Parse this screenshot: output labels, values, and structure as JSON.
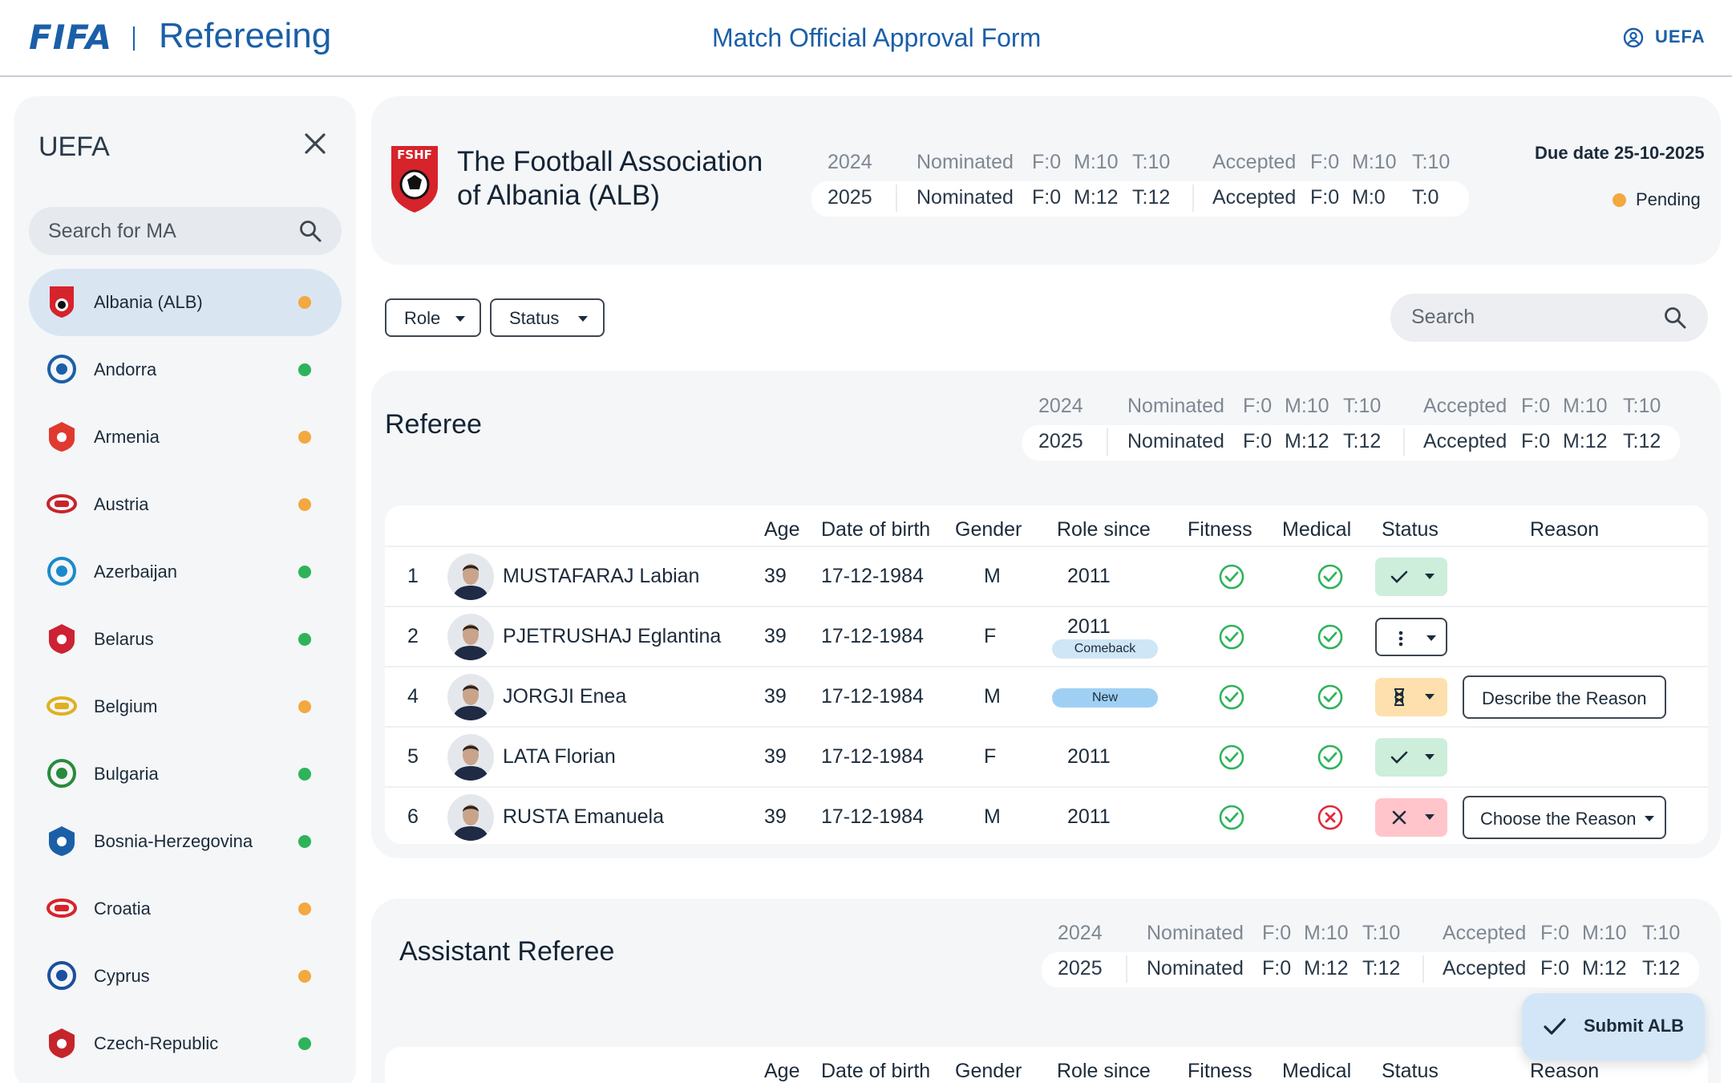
{
  "header": {
    "brand": "FIFA",
    "app_title": "Refereeing",
    "form_title": "Match Official Approval Form",
    "user_org": "UEFA"
  },
  "sidebar": {
    "title": "UEFA",
    "search_placeholder": "Search for MA",
    "items": [
      {
        "label": "Albania (ALB)",
        "status": "pending",
        "color": "#f3a840",
        "selected": true
      },
      {
        "label": "Andorra",
        "status": "done",
        "color": "#2fb35a"
      },
      {
        "label": "Armenia",
        "status": "pending",
        "color": "#f3a840"
      },
      {
        "label": "Austria",
        "status": "pending",
        "color": "#f3a840"
      },
      {
        "label": "Azerbaijan",
        "status": "done",
        "color": "#2fb35a"
      },
      {
        "label": "Belarus",
        "status": "done",
        "color": "#2fb35a"
      },
      {
        "label": "Belgium",
        "status": "pending",
        "color": "#f3a840"
      },
      {
        "label": "Bulgaria",
        "status": "done",
        "color": "#2fb35a"
      },
      {
        "label": "Bosnia-Herzegovina",
        "status": "done",
        "color": "#2fb35a"
      },
      {
        "label": "Croatia",
        "status": "pending",
        "color": "#f3a840"
      },
      {
        "label": "Cyprus",
        "status": "pending",
        "color": "#f3a840"
      },
      {
        "label": "Czech-Republic",
        "status": "done",
        "color": "#2fb35a"
      }
    ]
  },
  "association": {
    "logo_text": "FSHF",
    "name_line1": "The Football Association",
    "name_line2": "of Albania (ALB)",
    "due_date": "Due date 25-10-2025",
    "status": "Pending",
    "prev": {
      "year": "2024",
      "nominated": "Nominated",
      "nf": "F:0",
      "nm": "M:10",
      "nt": "T:10",
      "accepted": "Accepted",
      "af": "F:0",
      "am": "M:10",
      "at": "T:10"
    },
    "curr": {
      "year": "2025",
      "nominated": "Nominated",
      "nf": "F:0",
      "nm": "M:12",
      "nt": "T:12",
      "accepted": "Accepted",
      "af": "F:0",
      "am": "M:0",
      "at": "T:0"
    }
  },
  "filters": {
    "role": "Role",
    "status": "Status",
    "search_placeholder": "Search"
  },
  "referee": {
    "title": "Referee",
    "prev": {
      "year": "2024",
      "nominated": "Nominated",
      "nf": "F:0",
      "nm": "M:10",
      "nt": "T:10",
      "accepted": "Accepted",
      "af": "F:0",
      "am": "M:10",
      "at": "T:10"
    },
    "curr": {
      "year": "2025",
      "nominated": "Nominated",
      "nf": "F:0",
      "nm": "M:12",
      "nt": "T:12",
      "accepted": "Accepted",
      "af": "F:0",
      "am": "M:12",
      "at": "T:12"
    },
    "columns": {
      "age": "Age",
      "dob": "Date of birth",
      "gender": "Gender",
      "role_since": "Role since",
      "fitness": "Fitness",
      "medical": "Medical",
      "status": "Status",
      "reason": "Reason"
    },
    "rows": [
      {
        "num": "1",
        "name": "MUSTAFARAJ Labian",
        "age": "39",
        "dob": "17-12-1984",
        "gender": "M",
        "role_since": "2011",
        "tag": "",
        "fitness": "ok",
        "medical": "ok",
        "status": "approved",
        "reason": ""
      },
      {
        "num": "2",
        "name": "PJETRUSHAJ Eglantina",
        "age": "39",
        "dob": "17-12-1984",
        "gender": "F",
        "role_since": "2011",
        "tag": "Comeback",
        "fitness": "ok",
        "medical": "ok",
        "status": "none",
        "reason": ""
      },
      {
        "num": "4",
        "name": "JORGJI Enea",
        "age": "39",
        "dob": "17-12-1984",
        "gender": "M",
        "role_since": "",
        "tag": "New",
        "fitness": "ok",
        "medical": "ok",
        "status": "pending",
        "reason": "Describe the Reason"
      },
      {
        "num": "5",
        "name": "LATA Florian",
        "age": "39",
        "dob": "17-12-1984",
        "gender": "F",
        "role_since": "2011",
        "tag": "",
        "fitness": "ok",
        "medical": "ok",
        "status": "approved",
        "reason": ""
      },
      {
        "num": "6",
        "name": "RUSTA Emanuela",
        "age": "39",
        "dob": "17-12-1984",
        "gender": "M",
        "role_since": "2011",
        "tag": "",
        "fitness": "ok",
        "medical": "fail",
        "status": "rejected",
        "reason": "Choose the Reason"
      }
    ]
  },
  "assistant": {
    "title": "Assistant Referee",
    "prev": {
      "year": "2024",
      "nominated": "Nominated",
      "nf": "F:0",
      "nm": "M:10",
      "nt": "T:10",
      "accepted": "Accepted",
      "af": "F:0",
      "am": "M:10",
      "at": "T:10"
    },
    "curr": {
      "year": "2025",
      "nominated": "Nominated",
      "nf": "F:0",
      "nm": "M:12",
      "nt": "T:12",
      "accepted": "Accepted",
      "af": "F:0",
      "am": "M:12",
      "at": "T:12"
    },
    "columns": {
      "age": "Age",
      "dob": "Date of birth",
      "gender": "Gender",
      "role_since": "Role since",
      "fitness": "Fitness",
      "medical": "Medical",
      "status": "Status",
      "reason": "Reason"
    }
  },
  "submit_label": "Submit ALB",
  "colors": {
    "brand": "#1b5fa8",
    "approved": "#cdeedb",
    "pending": "#fde0ad",
    "rejected": "#ffc5cb",
    "tag": "#cfe6f7",
    "tag_new": "#9fd0f3",
    "ok": "#2fb35a",
    "fail": "#e02b3c"
  }
}
